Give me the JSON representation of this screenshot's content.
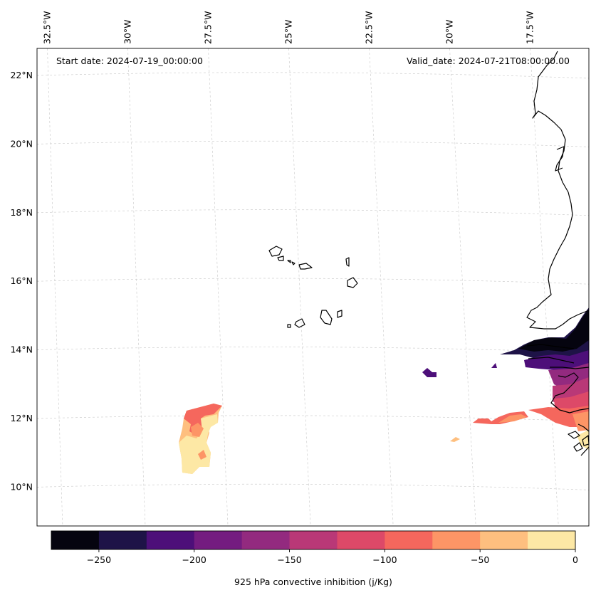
{
  "map": {
    "start_date_label": "Start date: 2024-07-19_00:00:00",
    "valid_date_label": "Valid_date: 2024-07-21T08:00:00.00",
    "lon_ticks": [
      {
        "label": "32.5°W",
        "lon": -32.5
      },
      {
        "label": "30°W",
        "lon": -30
      },
      {
        "label": "27.5°W",
        "lon": -27.5
      },
      {
        "label": "25°W",
        "lon": -25
      },
      {
        "label": "22.5°W",
        "lon": -22.5
      },
      {
        "label": "20°W",
        "lon": -20
      },
      {
        "label": "17.5°W",
        "lon": -17.5
      }
    ],
    "lat_ticks": [
      {
        "label": "22°N",
        "lat": 22
      },
      {
        "label": "20°N",
        "lat": 20
      },
      {
        "label": "18°N",
        "lat": 18
      },
      {
        "label": "16°N",
        "lat": 16
      },
      {
        "label": "14°N",
        "lat": 14
      },
      {
        "label": "12°N",
        "lat": 12
      },
      {
        "label": "10°N",
        "lat": 10
      }
    ],
    "features": [
      "Cape Verde Islands",
      "West African coastline (Senegal, Gambia, Guinea-Bissau)"
    ],
    "field_colors": {
      "c_m275": "#05040f",
      "c_m250": "#1e1347",
      "c_m225": "#4d0f79",
      "c_m200": "#741c80",
      "c_m175": "#932a7f",
      "c_m150": "#b93877",
      "c_m125": "#dd4968",
      "c_m100": "#f5675d",
      "c_m75": "#fd9566",
      "c_m50": "#febf7f",
      "c_m25": "#fde8a5"
    }
  },
  "colorbar": {
    "label": "925 hPa convective inhibition (j/Kg)",
    "min": -275,
    "max": 0,
    "bounds": [
      -275,
      -250,
      -225,
      -200,
      -175,
      -150,
      -125,
      -100,
      -75,
      -50,
      -25,
      0
    ],
    "colors": [
      "#05040f",
      "#1e1347",
      "#4d0f79",
      "#741c80",
      "#932a7f",
      "#b93877",
      "#dd4968",
      "#f5675d",
      "#fd9566",
      "#febf7f",
      "#fde8a5"
    ],
    "tick_values": [
      -250,
      -200,
      -150,
      -100,
      -50,
      0
    ],
    "tick_labels": [
      "−250",
      "−200",
      "−150",
      "−100",
      "−50",
      "0"
    ]
  }
}
